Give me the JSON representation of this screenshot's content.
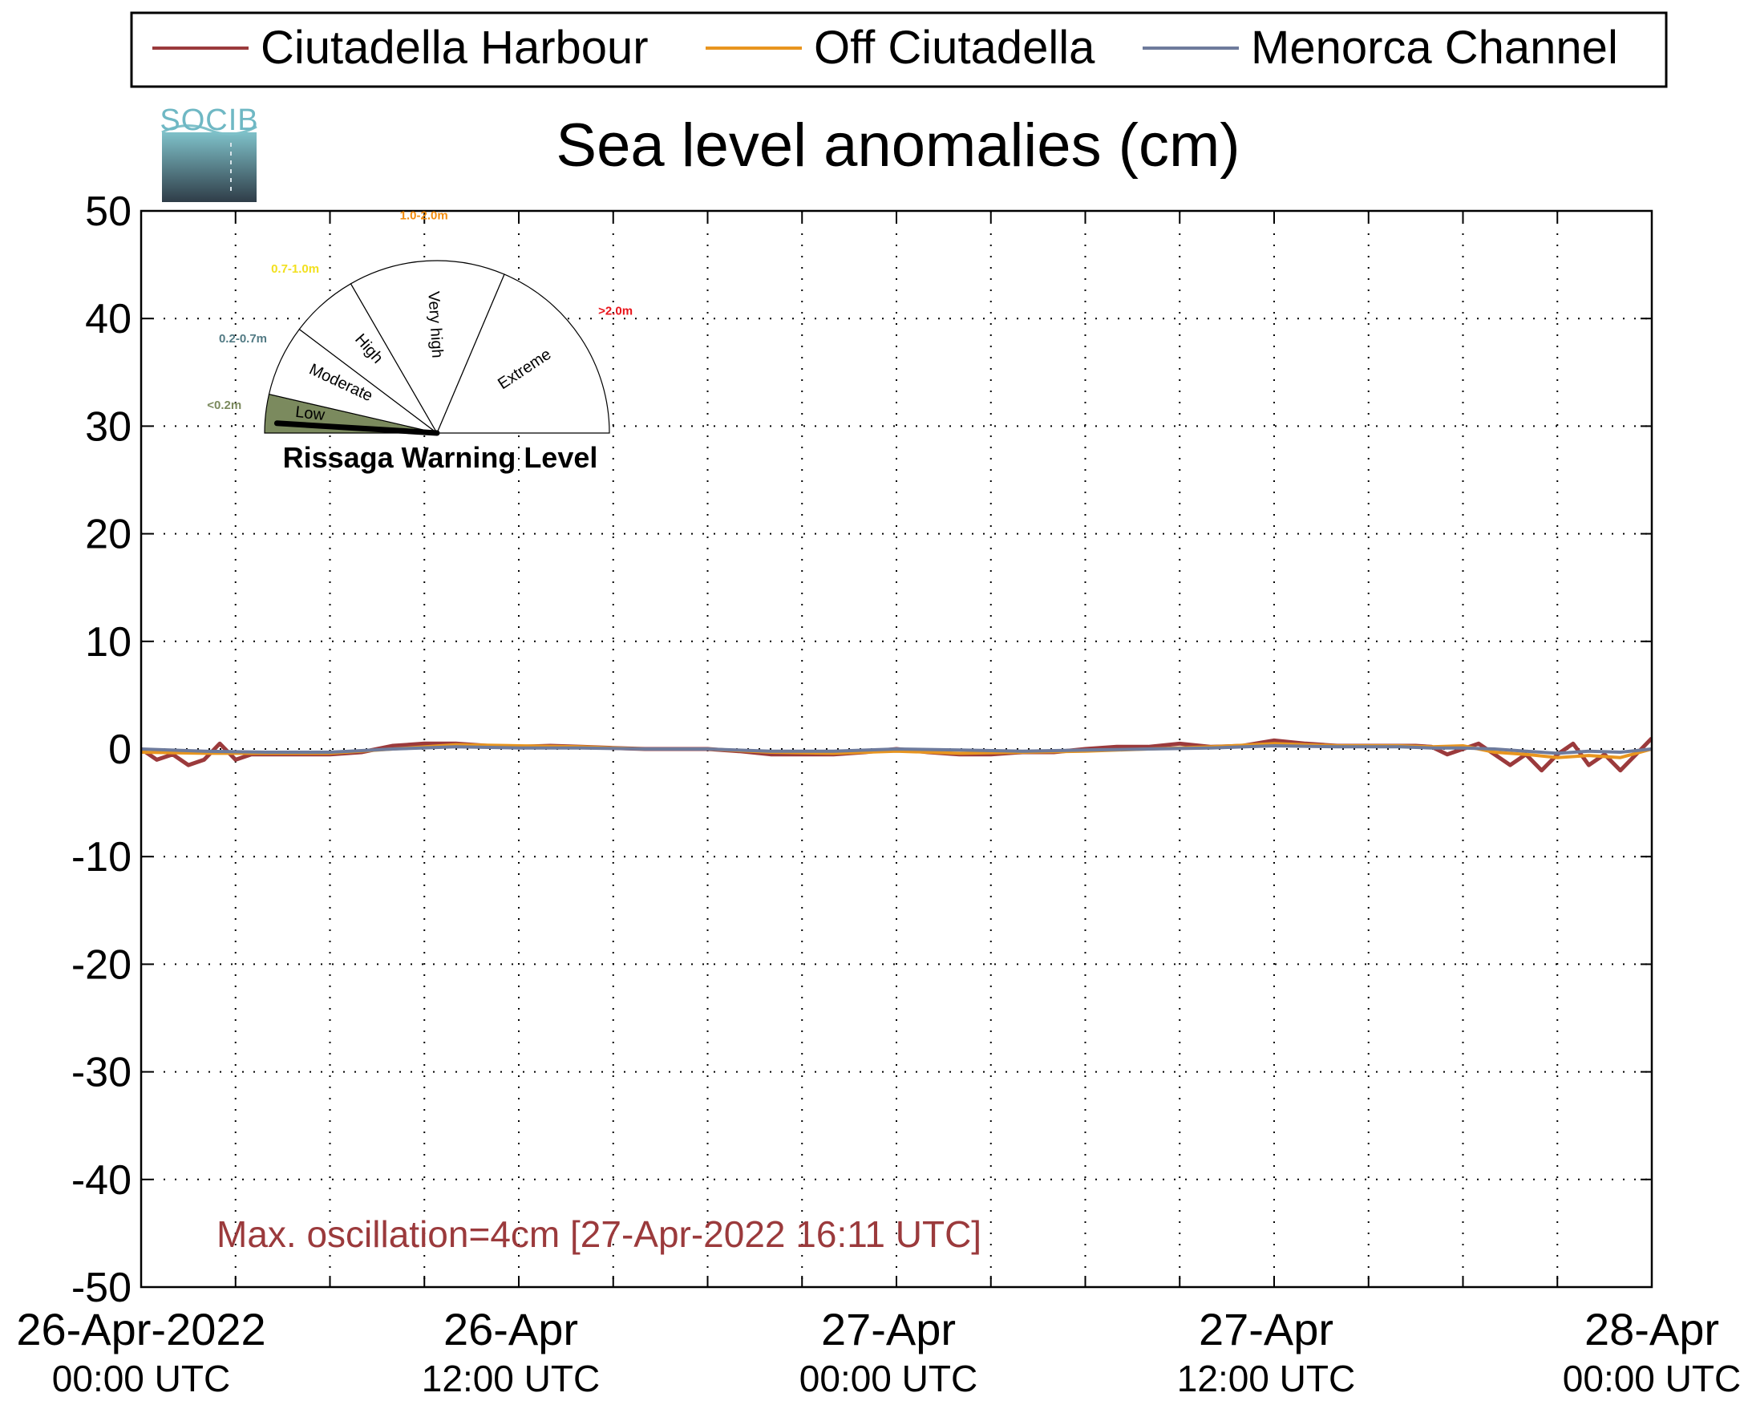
{
  "logo": {
    "text": "SOCIB",
    "icon": "socib-logo"
  },
  "chart_data": {
    "type": "line",
    "title": "Sea level anomalies (cm)",
    "xlabel": "",
    "ylabel": "",
    "ylim": [
      -50,
      50
    ],
    "yticks": [
      -50,
      -40,
      -30,
      -20,
      -10,
      0,
      10,
      20,
      30,
      40,
      50
    ],
    "xlim_hours": [
      0,
      48
    ],
    "x_unit": "hours since 26-Apr-2022 00:00 UTC",
    "x_minor_tick_hours": [
      0,
      3,
      6,
      9,
      12,
      15,
      18,
      21,
      24,
      27,
      30,
      33,
      36,
      39,
      42,
      45,
      48
    ],
    "x_major_ticks": [
      {
        "hour": 0,
        "date": "26-Apr-2022",
        "time": "00:00 UTC"
      },
      {
        "hour": 12,
        "date": "26-Apr",
        "time": "12:00 UTC"
      },
      {
        "hour": 24,
        "date": "27-Apr",
        "time": "00:00 UTC"
      },
      {
        "hour": 36,
        "date": "27-Apr",
        "time": "12:00 UTC"
      },
      {
        "hour": 48,
        "date": "28-Apr",
        "time": "00:00 UTC"
      }
    ],
    "grid": true,
    "legend_position": "top",
    "series": [
      {
        "name": "Ciutadella Harbour",
        "color": "#9b3a3c",
        "x": [
          0,
          0.5,
          1,
          1.5,
          2,
          2.5,
          3,
          3.5,
          4,
          5,
          6,
          7,
          8,
          9,
          10,
          11,
          12,
          13,
          14,
          15,
          16,
          17,
          18,
          19,
          20,
          21,
          22,
          23,
          24,
          25,
          26,
          27,
          28,
          29,
          30,
          31,
          32,
          33,
          34,
          35,
          36,
          37,
          38,
          39,
          40,
          40.5,
          41,
          41.5,
          42,
          42.5,
          43,
          43.5,
          44,
          44.5,
          45,
          45.5,
          46,
          46.5,
          47,
          47.5,
          48
        ],
        "y": [
          0,
          -1,
          -0.5,
          -1.5,
          -1,
          0.5,
          -1,
          -0.5,
          -0.5,
          -0.5,
          -0.5,
          -0.3,
          0.3,
          0.5,
          0.5,
          0.3,
          0.2,
          0.3,
          0.2,
          0.1,
          0,
          0,
          0,
          -0.2,
          -0.5,
          -0.5,
          -0.5,
          -0.3,
          0,
          -0.3,
          -0.5,
          -0.5,
          -0.3,
          -0.3,
          0,
          0.2,
          0.2,
          0.5,
          0.2,
          0.3,
          0.8,
          0.5,
          0.3,
          0.3,
          0.3,
          0.3,
          0.2,
          -0.5,
          0,
          0.5,
          -0.5,
          -1.5,
          -0.5,
          -2,
          -0.5,
          0.5,
          -1.5,
          -0.5,
          -2,
          -0.5,
          1
        ]
      },
      {
        "name": "Off Ciutadella",
        "color": "#e8951f",
        "x": [
          0,
          2,
          4,
          6,
          8,
          10,
          12,
          14,
          16,
          18,
          20,
          22,
          24,
          26,
          28,
          30,
          32,
          34,
          36,
          38,
          40,
          41,
          42,
          43,
          44,
          45,
          46,
          47,
          48
        ],
        "y": [
          -0.3,
          -0.4,
          -0.4,
          -0.4,
          0,
          0.4,
          0.3,
          0.2,
          0,
          0,
          -0.3,
          -0.4,
          -0.2,
          -0.4,
          -0.3,
          -0.2,
          0,
          0.2,
          0.5,
          0.3,
          0.3,
          0.2,
          0.3,
          -0.3,
          -0.5,
          -0.8,
          -0.6,
          -0.8,
          0
        ]
      },
      {
        "name": "Menorca Channel",
        "color": "#6e7b9c",
        "x": [
          0,
          2,
          4,
          6,
          8,
          10,
          12,
          14,
          16,
          18,
          20,
          22,
          24,
          26,
          28,
          30,
          32,
          34,
          36,
          38,
          40,
          41,
          42,
          43,
          44,
          45,
          46,
          47,
          48
        ],
        "y": [
          0,
          -0.2,
          -0.3,
          -0.3,
          0,
          0.2,
          0.1,
          0.1,
          0,
          0,
          -0.2,
          -0.2,
          0,
          -0.1,
          -0.2,
          -0.1,
          0,
          0.1,
          0.3,
          0.2,
          0.2,
          0.1,
          0.1,
          0,
          -0.2,
          -0.4,
          -0.2,
          -0.3,
          0
        ]
      }
    ],
    "annotation": "Max. oscillation=4cm [27-Apr-2022 16:11 UTC]",
    "annotation_color": "#9b3a3c",
    "inset_gauge": {
      "title": "Rissaga Warning Level",
      "current_level": "Low",
      "levels": [
        {
          "name": "Low",
          "range": "<0.2m",
          "range_color": "#7b8a5e",
          "fill": "#7b8a5e"
        },
        {
          "name": "Moderate",
          "range": "0.2-0.7m",
          "range_color": "#527a84",
          "fill": "#ffffff"
        },
        {
          "name": "High",
          "range": "0.7-1.0m",
          "range_color": "#f2e01e",
          "fill": "#ffffff"
        },
        {
          "name": "Very high",
          "range": "1.0-2.0m",
          "range_color": "#f28c0f",
          "fill": "#ffffff"
        },
        {
          "name": "Extreme",
          "range": ">2.0m",
          "range_color": "#e8141b",
          "fill": "#ffffff"
        }
      ]
    }
  }
}
